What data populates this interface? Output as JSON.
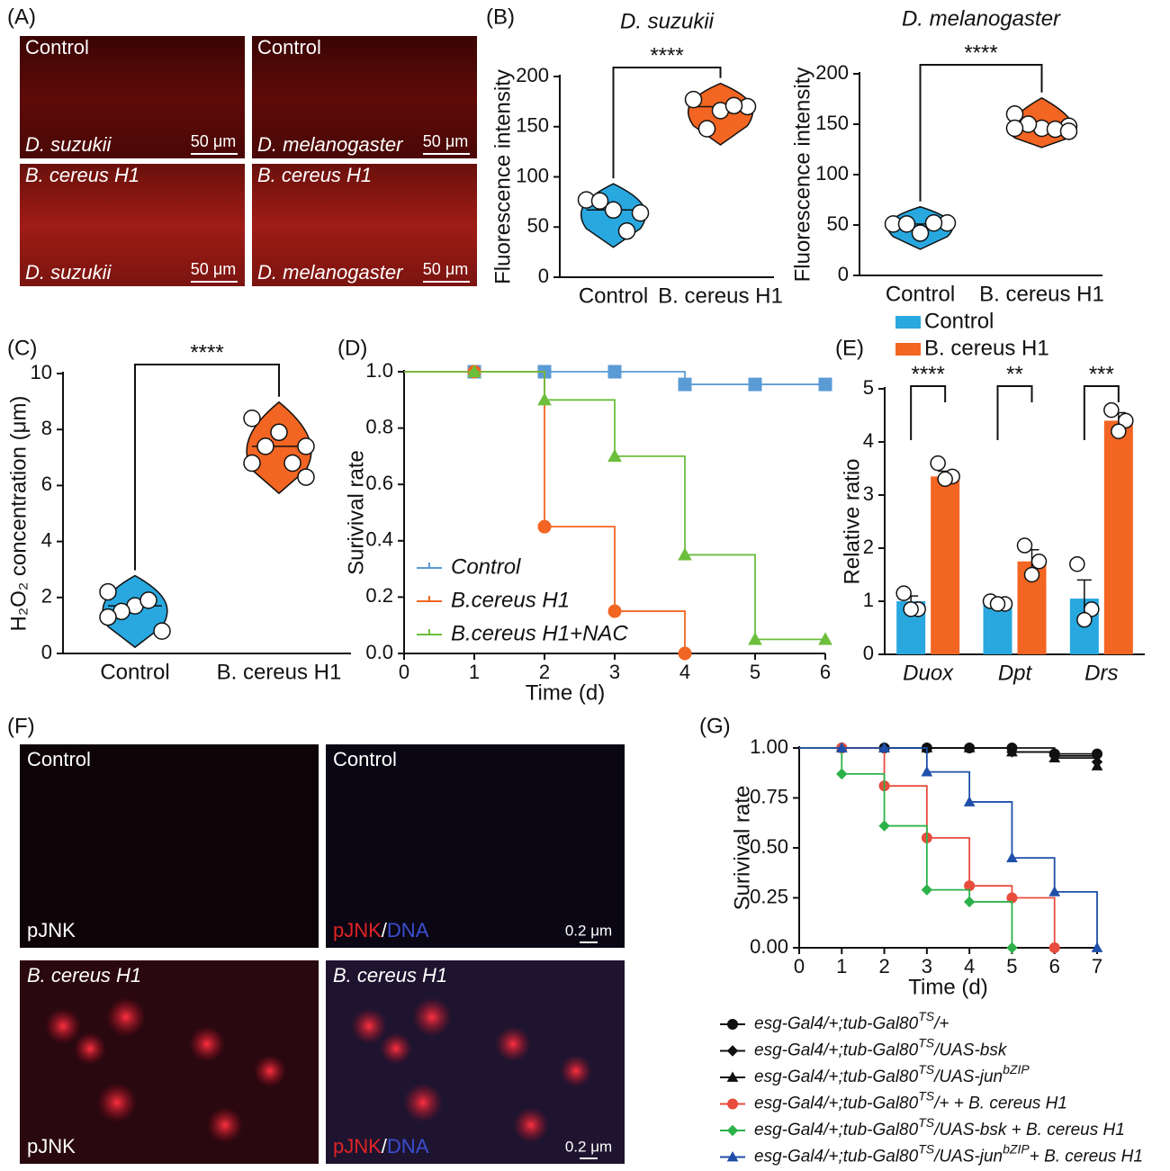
{
  "images": {
    "A": {
      "label": "(A)",
      "panels": [
        {
          "top": "Control",
          "bottom": "D. suzukii",
          "scale": "50 μm"
        },
        {
          "top": "Control",
          "bottom": "D. melanogaster",
          "scale": "50 μm"
        },
        {
          "top": "B. cereus H1",
          "bottom": "D. suzukii",
          "scale": "50 μm"
        },
        {
          "top": "B. cereus H1",
          "bottom": "D. melanogaster",
          "scale": "50 μm"
        }
      ]
    },
    "F": {
      "label": "(F)",
      "panels": [
        {
          "top": "Control",
          "bottom": [
            "pJNK"
          ]
        },
        {
          "top": "Control",
          "bottom": [
            "pJNK",
            "/",
            "DNA"
          ],
          "scale": "0.2 μm"
        },
        {
          "top": "B. cereus H1",
          "bottom": [
            "pJNK"
          ]
        },
        {
          "top": "B. cereus H1",
          "bottom": [
            "pJNK",
            "/",
            "DNA"
          ],
          "scale": "0.2 μm"
        }
      ]
    }
  },
  "chart_data": [
    {
      "type": "violin",
      "panel": "(B)",
      "title": "D. suzukii",
      "y_label": "Fluorescence intensity",
      "categories": [
        "Control",
        "B. cereus H1"
      ],
      "significance": "****",
      "series": [
        {
          "color": "#29a8e0",
          "values": [
            77,
            67,
            64,
            76,
            46
          ]
        },
        {
          "color": "#f26522",
          "values": [
            177,
            166,
            170,
            148,
            171
          ]
        }
      ],
      "ylim": [
        0,
        200
      ],
      "yticks": [
        0,
        50,
        100,
        150,
        200
      ]
    },
    {
      "type": "violin",
      "title": "D. melanogaster",
      "y_label": "Fluorescence intensity",
      "categories": [
        "Control",
        "B. cereus H1"
      ],
      "significance": "****",
      "series": [
        {
          "color": "#29a8e0",
          "values": [
            51,
            42,
            52,
            51,
            52
          ]
        },
        {
          "color": "#f26522",
          "values": [
            160,
            146,
            148,
            150,
            145,
            146,
            143
          ]
        }
      ],
      "ylim": [
        0,
        200
      ],
      "yticks": [
        0,
        50,
        100,
        150,
        200
      ]
    },
    {
      "type": "violin",
      "panel": "(C)",
      "y_label": "H₂O₂ concentration (μm)",
      "categories": [
        "Control",
        "B. cereus H1"
      ],
      "significance": "****",
      "series": [
        {
          "color": "#29a8e0",
          "values": [
            2.2,
            1.7,
            0.8,
            1.5,
            1.9,
            1.3
          ]
        },
        {
          "color": "#f26522",
          "values": [
            8.4,
            7.9,
            7.4,
            7.4,
            6.8,
            6.8,
            6.3
          ]
        }
      ],
      "ylim": [
        0,
        10
      ],
      "yticks": [
        0,
        2,
        4,
        6,
        8,
        10
      ]
    },
    {
      "type": "step",
      "panel": "(D)",
      "x_label": "Time  (d)",
      "y_label": "Surivival rate",
      "legend": "lower left",
      "x": [
        0,
        1,
        2,
        3,
        4,
        5,
        6
      ],
      "xlim": [
        0,
        6
      ],
      "xticks": [
        0,
        1,
        2,
        3,
        4,
        5,
        6
      ],
      "ylim": [
        0,
        1
      ],
      "yticks": [
        {
          "value": 0,
          "label": "0.0"
        },
        0.2,
        0.4,
        0.6,
        0.8,
        {
          "value": 1,
          "label": "1.0"
        }
      ],
      "series": [
        {
          "name": "Control",
          "color": "#5b9bd5",
          "marker": "square",
          "values": [
            1,
            1,
            1,
            1,
            0.955,
            0.955,
            0.955
          ]
        },
        {
          "name": "B.cereus H1",
          "color": "#f26522",
          "marker": "circle",
          "values": [
            1,
            1,
            0.45,
            0.15,
            0,
            null,
            null
          ]
        },
        {
          "name": "B.cereus H1+NAC",
          "color": "#6cbf3c",
          "marker": "triangle",
          "values": [
            1,
            1,
            0.9,
            0.7,
            0.35,
            0.05,
            0.05
          ]
        }
      ]
    },
    {
      "type": "bar",
      "panel": "(E)",
      "y_label": "Relative ratio",
      "legend": "top",
      "categories": [
        "Duox",
        "Dpt",
        "Drs"
      ],
      "significance": [
        "****",
        "**",
        "***"
      ],
      "ylim": [
        0,
        5
      ],
      "yticks": [
        0,
        1,
        2,
        3,
        4,
        5
      ],
      "series": [
        {
          "name": "Control",
          "color": "#29a8e0",
          "values": [
            1.0,
            0.97,
            1.05
          ],
          "errors": [
            0.1,
            0.03,
            0.35
          ],
          "points": [
            [
              1.15,
              0.85,
              0.85
            ],
            [
              1.0,
              0.95,
              0.95
            ],
            [
              1.7,
              0.85,
              0.65
            ]
          ]
        },
        {
          "name": "B. cereus H1",
          "color": "#f26522",
          "values": [
            3.35,
            1.75,
            4.4
          ],
          "errors": [
            0.1,
            0.22,
            0.15
          ],
          "points": [
            [
              3.6,
              3.35,
              3.3
            ],
            [
              2.05,
              1.75,
              1.5
            ],
            [
              4.6,
              4.4,
              4.2
            ]
          ]
        }
      ]
    },
    {
      "type": "step",
      "panel": "(G)",
      "x_label": "Time (d)",
      "y_label": "Surivival rate",
      "legend": "below",
      "x": [
        0,
        1,
        2,
        3,
        4,
        5,
        6,
        7
      ],
      "xlim": [
        0,
        7
      ],
      "xticks": [
        0,
        1,
        2,
        3,
        4,
        5,
        6,
        7
      ],
      "ylim": [
        0,
        1
      ],
      "yticks": [
        {
          "value": 0,
          "label": "0.00"
        },
        0.25,
        {
          "value": 0.5,
          "label": "0.50"
        },
        0.75,
        {
          "value": 1,
          "label": "1.00"
        }
      ],
      "series": [
        {
          "name": [
            "esg-Gal4/+;tub-Gal80",
            "TS",
            "/+"
          ],
          "color": "#111111",
          "marker": "circle",
          "values": [
            1,
            1,
            1,
            1,
            1,
            1,
            0.97,
            0.97
          ]
        },
        {
          "name": [
            "esg-Gal4/+;tub-Gal80",
            "TS",
            "/UAS-bsk"
          ],
          "color": "#111111",
          "marker": "diamond",
          "values": [
            1,
            1,
            1,
            1,
            1,
            0.98,
            0.96,
            0.93
          ]
        },
        {
          "name": [
            "esg-Gal4/+;tub-Gal80",
            "TS",
            "/UAS-jun",
            "bZIP"
          ],
          "color": "#111111",
          "marker": "triangle",
          "values": [
            1,
            1,
            1,
            1,
            1,
            0.98,
            0.95,
            0.91
          ]
        },
        {
          "name": [
            "esg-Gal4/+;tub-Gal80",
            "TS",
            "/+ + B. cereus H1"
          ],
          "color": "#e84c3d",
          "marker": "circle",
          "values": [
            1,
            1,
            0.81,
            0.55,
            0.31,
            0.25,
            0,
            null
          ]
        },
        {
          "name": [
            "esg-Gal4/+;tub-Gal80",
            "TS",
            "/UAS-bsk + B. cereus H1"
          ],
          "color": "#2db24a",
          "marker": "diamond",
          "values": [
            1,
            0.87,
            0.61,
            0.29,
            0.23,
            0,
            null,
            null
          ]
        },
        {
          "name": [
            "esg-Gal4/+;tub-Gal80",
            "TS",
            "/UAS-jun",
            "bZIP",
            "+ B. cereus H1"
          ],
          "color": "#1f4fa8",
          "marker": "triangle",
          "values": [
            1,
            1,
            1,
            0.88,
            0.73,
            0.45,
            0.28,
            0
          ]
        }
      ]
    }
  ]
}
